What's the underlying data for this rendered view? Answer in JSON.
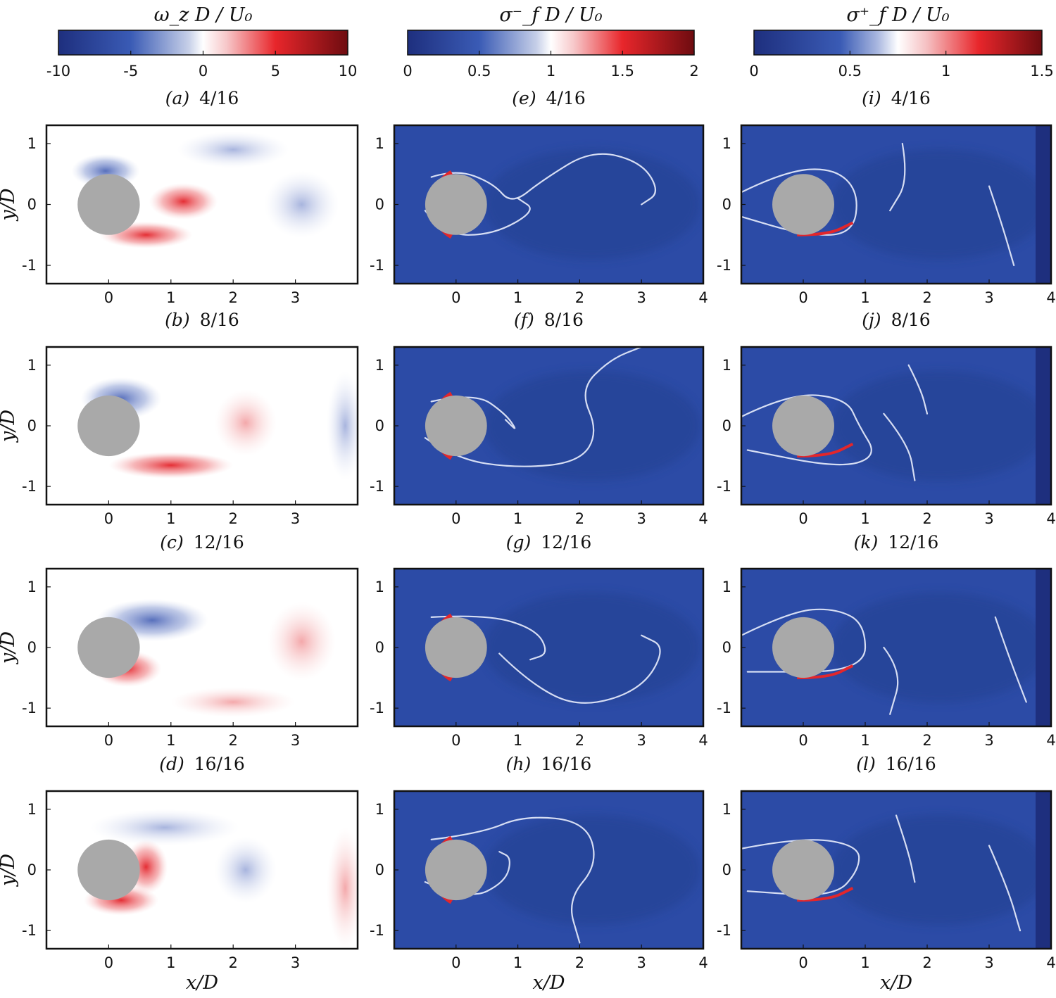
{
  "chart_data": {
    "type": "heatmap",
    "colorbars": [
      {
        "id": "vort",
        "title": "ω_z D / U₀",
        "ticks": [
          "-10",
          "-5",
          "0",
          "5",
          "10"
        ],
        "range": [
          -10,
          10
        ]
      },
      {
        "id": "smin",
        "title": "σ⁻_f D / U₀",
        "ticks": [
          "0",
          "0.5",
          "1",
          "1.5",
          "2"
        ],
        "range": [
          0,
          2
        ]
      },
      {
        "id": "splus",
        "title": "σ⁺_f D / U₀",
        "ticks": [
          "0",
          "0.5",
          "1",
          "1.5"
        ],
        "range": [
          0,
          1.5
        ]
      }
    ],
    "xlabel": "x/D",
    "ylabel": "y/D",
    "xlim": [
      -1,
      4
    ],
    "ylim": [
      -1.3,
      1.3
    ],
    "yticks": [
      "-1",
      "0",
      "1"
    ],
    "xticks": {
      "col1": [
        "0",
        "1",
        "2",
        "3"
      ],
      "col2": [
        "0",
        "1",
        "2",
        "3",
        "4"
      ],
      "col3": [
        "0",
        "1",
        "2",
        "3",
        "4"
      ]
    },
    "cylinder": {
      "center": [
        0,
        0
      ],
      "diameter": 1,
      "color": "#a9a9a9"
    },
    "panels": [
      {
        "letter": "(a)",
        "phase": "4/16",
        "field": "vort"
      },
      {
        "letter": "(b)",
        "phase": "8/16",
        "field": "vort"
      },
      {
        "letter": "(c)",
        "phase": "12/16",
        "field": "vort"
      },
      {
        "letter": "(d)",
        "phase": "16/16",
        "field": "vort"
      },
      {
        "letter": "(e)",
        "phase": "4/16",
        "field": "smin"
      },
      {
        "letter": "(f)",
        "phase": "8/16",
        "field": "smin"
      },
      {
        "letter": "(g)",
        "phase": "12/16",
        "field": "smin"
      },
      {
        "letter": "(h)",
        "phase": "16/16",
        "field": "smin"
      },
      {
        "letter": "(i)",
        "phase": "4/16",
        "field": "splus"
      },
      {
        "letter": "(j)",
        "phase": "8/16",
        "field": "splus"
      },
      {
        "letter": "(k)",
        "phase": "12/16",
        "field": "splus"
      },
      {
        "letter": "(l)",
        "phase": "16/16",
        "field": "splus"
      }
    ],
    "colors": {
      "blue_dark": "#1a3a8f",
      "blue_field": "#2c4fa8",
      "white": "#ffffff",
      "red": "#e8222a",
      "red_dark": "#7a0a12",
      "vort_neg": "#3a5bb5",
      "vort_pos": "#e8242b"
    }
  }
}
